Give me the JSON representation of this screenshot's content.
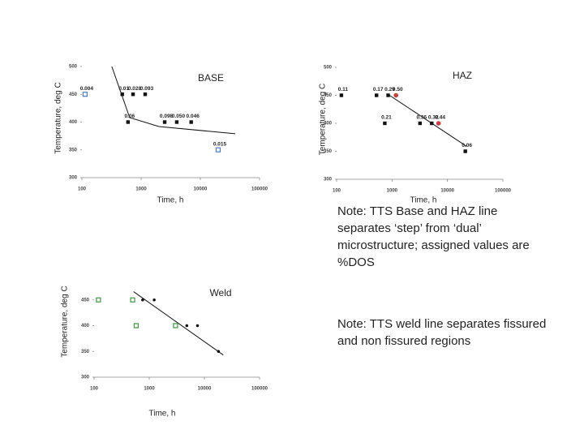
{
  "chart_data": [
    {
      "type": "scatter",
      "title": "BASE",
      "x_label": "Time, h",
      "y_label": "Temperature, deg C",
      "xscale": "log",
      "xlim": [
        100,
        100000
      ],
      "xticks": [
        100,
        1000,
        10000,
        100000
      ],
      "ylim": [
        300,
        500
      ],
      "yticks": [
        300,
        350,
        400,
        450,
        500
      ],
      "series": [
        {
          "marker": "filled-square",
          "color": "#111111",
          "x": [
            480,
            730,
            1170,
            600,
            2500,
            4000,
            7000
          ],
          "values": [
            450,
            450,
            450,
            400,
            400,
            400,
            400
          ],
          "point_labels": [
            "0.01",
            "0.028",
            "0.093",
            "0.06",
            "0.098",
            "0.050",
            "0.046"
          ]
        },
        {
          "marker": "open-square",
          "color": "#4a7bd0",
          "x": [
            113,
            20000
          ],
          "values": [
            450,
            350
          ],
          "point_labels": [
            "0.004",
            "0.015"
          ]
        }
      ],
      "trend": {
        "x": [
          320,
          640,
          2000,
          39000
        ],
        "values": [
          500,
          408,
          392,
          379
        ]
      }
    },
    {
      "type": "scatter",
      "title": "HAZ",
      "x_label": "Time, h",
      "y_label": "Temperature, deg C",
      "xscale": "log",
      "xlim": [
        100,
        100000
      ],
      "xticks": [
        100,
        1000,
        10000,
        100000
      ],
      "ylim": [
        300,
        500
      ],
      "yticks": [
        300,
        350,
        400,
        450,
        500
      ],
      "series": [
        {
          "marker": "filled-square",
          "color": "#111111",
          "x": [
            122,
            525,
            850,
            740,
            3200,
            5200,
            21000
          ],
          "values": [
            450,
            450,
            450,
            400,
            400,
            400,
            350
          ],
          "point_labels": [
            "0.11",
            "0.17",
            "0.29",
            "0.21",
            "0.36",
            "0.32",
            "0.06"
          ]
        },
        {
          "marker": "circle",
          "color": "#d23a3a",
          "x": [
            1180,
            6900
          ],
          "values": [
            450,
            400
          ],
          "point_labels": [
            "0.50",
            "0.44"
          ]
        }
      ],
      "trend": {
        "x": [
          900,
          22000
        ],
        "values": [
          450,
          359
        ]
      }
    },
    {
      "type": "scatter",
      "title": "Weld",
      "x_label": "Time, h",
      "y_label": "Temperature, deg C",
      "xscale": "log",
      "xlim": [
        100,
        100000
      ],
      "xticks": [
        100,
        1000,
        10000,
        100000
      ],
      "ylim": [
        300,
        500
      ],
      "yticks": [
        300,
        350,
        400,
        450
      ],
      "series": [
        {
          "marker": "open-square",
          "color": "#3a9a3a",
          "x": [
            120,
            500,
            580,
            3000
          ],
          "values": [
            450,
            450,
            400,
            400
          ]
        },
        {
          "marker": "dot",
          "color": "#111111",
          "x": [
            760,
            1230,
            4800,
            7500,
            18000
          ],
          "values": [
            450,
            450,
            400,
            400,
            350
          ]
        }
      ],
      "trend": {
        "x": [
          520,
          22000
        ],
        "values": [
          466,
          343
        ]
      }
    }
  ],
  "notes": [
    "Note: TTS Base and HAZ line separates ‘step’ from ‘dual’ microstructure; assigned values are %DOS",
    "Note: TTS weld line separates fissured and non fissured regions"
  ]
}
